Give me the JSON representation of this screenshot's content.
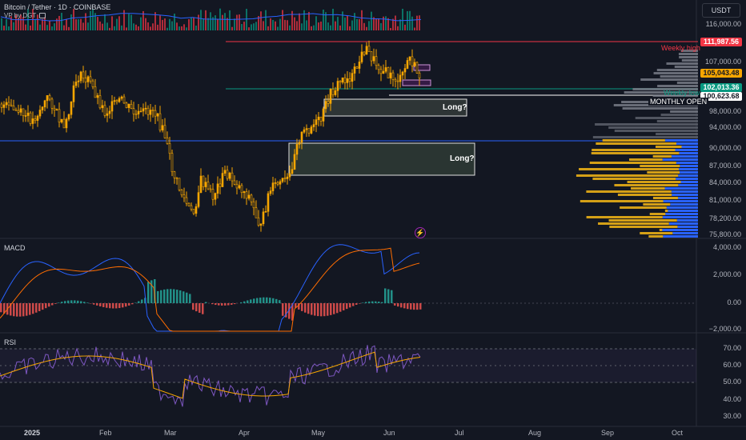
{
  "header": {
    "symbol_title": "Bitcoin / Tether · 1D · COINBASE",
    "indicator_label": "VP by DGT",
    "indicator_icon": "lock-icon",
    "currency_button": "USDT"
  },
  "price_axis": {
    "labels": [
      "116,000.00",
      "107,000.00",
      "98,000.00",
      "94,000.00",
      "90,000.00",
      "87,000.00",
      "84,000.00",
      "81,000.00",
      "78,200.00",
      "75,800.00"
    ]
  },
  "price_tags": [
    {
      "name": "weekly-high-tag",
      "value": "111,987.56",
      "bg": "#f23645",
      "fg": "#ffffff"
    },
    {
      "name": "last-price-tag",
      "value": "105,043.48",
      "bg": "#f7a600",
      "fg": "#131722"
    },
    {
      "name": "weekly-low-tag",
      "value": "102,013.36",
      "bg": "#089981",
      "fg": "#ffffff"
    },
    {
      "name": "monthly-open-tag",
      "value": "100,623.68",
      "bg": "#ffffff",
      "fg": "#131722"
    }
  ],
  "annotations": {
    "weekly_high": "Weekly high",
    "weekly_low": "Weekly low",
    "monthly_open": "MONTHLY OPEN"
  },
  "zones": [
    {
      "name": "long-zone-upper",
      "label": "Long?"
    },
    {
      "name": "long-zone-lower",
      "label": "Long?"
    }
  ],
  "macd": {
    "title": "MACD",
    "axis_labels": [
      "4,000.00",
      "2,000.00",
      "0.00",
      "−2,000.00"
    ]
  },
  "rsi": {
    "title": "RSI",
    "axis_labels": [
      "70.00",
      "60.00",
      "50.00",
      "40.00",
      "30.00"
    ]
  },
  "time_axis": {
    "labels": [
      {
        "text": "2025",
        "bold": true
      },
      {
        "text": "Feb",
        "bold": false
      },
      {
        "text": "Mar",
        "bold": false
      },
      {
        "text": "Apr",
        "bold": false
      },
      {
        "text": "May",
        "bold": false
      },
      {
        "text": "Jun",
        "bold": false
      },
      {
        "text": "Jul",
        "bold": false
      },
      {
        "text": "Aug",
        "bold": false
      },
      {
        "text": "Sep",
        "bold": false
      },
      {
        "text": "Oct",
        "bold": false
      }
    ]
  },
  "colors": {
    "background": "#131722",
    "candle": "#f7a600",
    "weekly_high": "#f23645",
    "weekly_low": "#089981",
    "vp_gold": "#d4a017",
    "vp_blue": "#2962ff",
    "vp_gray": "#787b86",
    "macd_line": "#2962ff",
    "signal_line": "#ff6d00",
    "rsi_line": "#7e57c2",
    "rsi_ma": "#f7a600"
  }
}
